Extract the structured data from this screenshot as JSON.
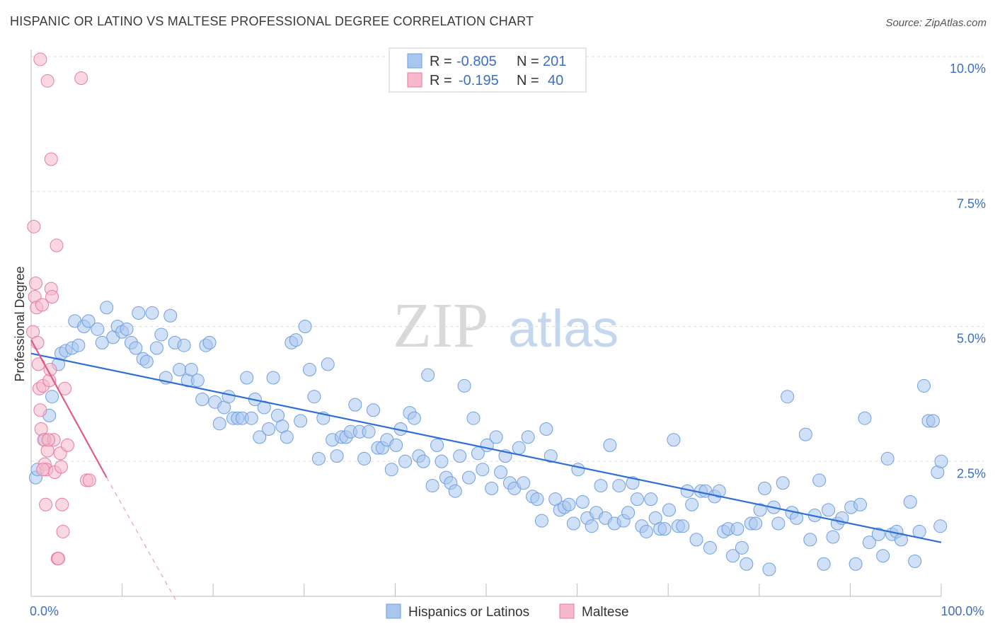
{
  "title": "HISPANIC OR LATINO VS MALTESE PROFESSIONAL DEGREE CORRELATION CHART",
  "source": "Source: ZipAtlas.com",
  "watermark": {
    "zip": "ZIP",
    "atlas": "atlas"
  },
  "legend": {
    "rows": [
      {
        "r_label": "R =",
        "r_value": "-0.805",
        "n_label": "N =",
        "n_value": "201",
        "color": "#a9c6ee"
      },
      {
        "r_label": "R =",
        "r_value": "-0.195",
        "n_label": "N =",
        "n_value": "40",
        "color": "#f6b8cb"
      }
    ]
  },
  "bottom_legend": [
    {
      "label": "Hispanics or Latinos",
      "color": "#a9c6ee"
    },
    {
      "label": "Maltese",
      "color": "#f6b8cb"
    }
  ],
  "chart_data": {
    "type": "scatter",
    "xlabel": "",
    "ylabel": "Professional Degree",
    "xlim": [
      0,
      100
    ],
    "ylim": [
      0,
      10
    ],
    "x_tick_labels": [
      {
        "value": 0,
        "label": "0.0%"
      },
      {
        "value": 100,
        "label": "100.0%"
      }
    ],
    "y_tick_labels": [
      {
        "value": 2.5,
        "label": "2.5%"
      },
      {
        "value": 5.0,
        "label": "5.0%"
      },
      {
        "value": 7.5,
        "label": "7.5%"
      },
      {
        "value": 10.0,
        "label": "10.0%"
      }
    ],
    "grid": true,
    "series": [
      {
        "name": "Hispanics or Latinos",
        "color": "#6f9fe0",
        "fill": "#a9c6ee",
        "trend": {
          "x": [
            0,
            100
          ],
          "y": [
            4.5,
            1.0
          ]
        },
        "points": [
          [
            0.5,
            2.2
          ],
          [
            0.7,
            2.35
          ],
          [
            1.5,
            2.9
          ],
          [
            2.0,
            3.35
          ],
          [
            2.3,
            3.7
          ],
          [
            3.0,
            4.3
          ],
          [
            3.3,
            4.5
          ],
          [
            3.8,
            4.55
          ],
          [
            4.5,
            4.6
          ],
          [
            5.2,
            4.65
          ],
          [
            4.8,
            5.1
          ],
          [
            5.8,
            5.0
          ],
          [
            6.3,
            5.1
          ],
          [
            7.3,
            4.95
          ],
          [
            7.8,
            4.7
          ],
          [
            8.3,
            5.35
          ],
          [
            9.0,
            4.8
          ],
          [
            9.5,
            5.0
          ],
          [
            10.0,
            4.9
          ],
          [
            10.5,
            4.95
          ],
          [
            11.0,
            4.7
          ],
          [
            11.5,
            4.6
          ],
          [
            11.8,
            5.25
          ],
          [
            12.3,
            4.4
          ],
          [
            12.7,
            4.35
          ],
          [
            13.3,
            5.25
          ],
          [
            13.8,
            4.6
          ],
          [
            14.3,
            4.85
          ],
          [
            14.8,
            4.05
          ],
          [
            15.3,
            5.2
          ],
          [
            15.8,
            4.7
          ],
          [
            16.3,
            4.2
          ],
          [
            16.8,
            4.65
          ],
          [
            17.2,
            4.0
          ],
          [
            17.6,
            4.2
          ],
          [
            18.3,
            4.0
          ],
          [
            18.8,
            3.65
          ],
          [
            19.2,
            4.65
          ],
          [
            19.6,
            4.7
          ],
          [
            20.2,
            3.6
          ],
          [
            20.7,
            3.2
          ],
          [
            21.2,
            3.5
          ],
          [
            21.7,
            3.7
          ],
          [
            22.2,
            3.3
          ],
          [
            22.7,
            3.3
          ],
          [
            23.2,
            3.3
          ],
          [
            23.7,
            4.05
          ],
          [
            24.2,
            3.3
          ],
          [
            24.6,
            3.65
          ],
          [
            25.1,
            2.95
          ],
          [
            25.6,
            3.5
          ],
          [
            26.1,
            3.1
          ],
          [
            26.6,
            4.05
          ],
          [
            27.1,
            3.35
          ],
          [
            27.6,
            3.15
          ],
          [
            28.1,
            2.95
          ],
          [
            28.6,
            4.7
          ],
          [
            29.1,
            4.75
          ],
          [
            29.6,
            3.25
          ],
          [
            30.1,
            5.0
          ],
          [
            30.6,
            4.2
          ],
          [
            31.1,
            3.7
          ],
          [
            31.6,
            2.55
          ],
          [
            32.1,
            3.3
          ],
          [
            32.6,
            4.3
          ],
          [
            33.1,
            2.9
          ],
          [
            33.6,
            2.6
          ],
          [
            34.1,
            2.95
          ],
          [
            34.6,
            2.95
          ],
          [
            35.1,
            3.05
          ],
          [
            35.6,
            3.55
          ],
          [
            36.1,
            3.05
          ],
          [
            36.6,
            2.55
          ],
          [
            37.1,
            3.05
          ],
          [
            37.6,
            3.45
          ],
          [
            38.1,
            2.75
          ],
          [
            38.6,
            2.75
          ],
          [
            39.1,
            2.9
          ],
          [
            39.6,
            2.35
          ],
          [
            40.1,
            2.8
          ],
          [
            40.6,
            3.1
          ],
          [
            41.1,
            2.5
          ],
          [
            41.6,
            3.4
          ],
          [
            42.1,
            3.3
          ],
          [
            42.6,
            2.6
          ],
          [
            43.1,
            2.5
          ],
          [
            43.6,
            4.1
          ],
          [
            44.1,
            2.05
          ],
          [
            44.6,
            2.8
          ],
          [
            45.1,
            2.5
          ],
          [
            45.6,
            2.2
          ],
          [
            46.1,
            2.1
          ],
          [
            46.6,
            1.95
          ],
          [
            47.1,
            2.6
          ],
          [
            47.6,
            3.9
          ],
          [
            48.1,
            2.2
          ],
          [
            48.6,
            3.3
          ],
          [
            49.1,
            2.65
          ],
          [
            49.6,
            2.35
          ],
          [
            50.1,
            2.8
          ],
          [
            50.6,
            2.0
          ],
          [
            51.1,
            2.95
          ],
          [
            51.6,
            2.3
          ],
          [
            52.1,
            2.6
          ],
          [
            52.6,
            2.1
          ],
          [
            53.1,
            2.0
          ],
          [
            53.6,
            2.75
          ],
          [
            54.1,
            2.1
          ],
          [
            54.6,
            2.95
          ],
          [
            55.1,
            1.85
          ],
          [
            55.6,
            1.8
          ],
          [
            56.1,
            1.4
          ],
          [
            56.6,
            3.1
          ],
          [
            57.1,
            2.6
          ],
          [
            57.6,
            1.8
          ],
          [
            58.1,
            1.6
          ],
          [
            58.6,
            1.65
          ],
          [
            59.1,
            1.7
          ],
          [
            59.6,
            1.35
          ],
          [
            60.1,
            2.35
          ],
          [
            60.6,
            1.75
          ],
          [
            61.1,
            1.45
          ],
          [
            61.6,
            1.3
          ],
          [
            62.1,
            1.55
          ],
          [
            62.6,
            2.05
          ],
          [
            63.1,
            1.45
          ],
          [
            63.6,
            2.8
          ],
          [
            64.1,
            1.35
          ],
          [
            64.6,
            2.05
          ],
          [
            65.1,
            1.4
          ],
          [
            65.6,
            1.55
          ],
          [
            66.1,
            2.1
          ],
          [
            66.6,
            1.8
          ],
          [
            67.1,
            1.3
          ],
          [
            67.6,
            1.2
          ],
          [
            68.1,
            1.8
          ],
          [
            68.6,
            1.45
          ],
          [
            69.1,
            1.25
          ],
          [
            69.6,
            1.25
          ],
          [
            70.1,
            1.6
          ],
          [
            70.6,
            2.9
          ],
          [
            71.1,
            1.3
          ],
          [
            71.6,
            1.3
          ],
          [
            72.1,
            1.95
          ],
          [
            72.6,
            1.7
          ],
          [
            73.1,
            1.05
          ],
          [
            73.6,
            1.95
          ],
          [
            74.1,
            1.95
          ],
          [
            74.6,
            0.9
          ],
          [
            75.1,
            1.85
          ],
          [
            75.6,
            1.95
          ],
          [
            76.1,
            1.2
          ],
          [
            76.6,
            1.25
          ],
          [
            77.1,
            0.75
          ],
          [
            77.6,
            1.25
          ],
          [
            78.1,
            0.9
          ],
          [
            78.6,
            0.6
          ],
          [
            79.1,
            1.35
          ],
          [
            79.6,
            1.35
          ],
          [
            80.1,
            1.6
          ],
          [
            80.6,
            2.0
          ],
          [
            81.1,
            0.5
          ],
          [
            81.6,
            1.65
          ],
          [
            82.1,
            1.35
          ],
          [
            82.6,
            2.1
          ],
          [
            83.1,
            3.7
          ],
          [
            83.6,
            1.55
          ],
          [
            84.1,
            1.45
          ],
          [
            85.1,
            3.0
          ],
          [
            85.6,
            1.05
          ],
          [
            86.1,
            1.5
          ],
          [
            86.6,
            2.15
          ],
          [
            87.1,
            0.6
          ],
          [
            87.6,
            1.6
          ],
          [
            88.1,
            1.1
          ],
          [
            88.6,
            1.35
          ],
          [
            89.1,
            1.45
          ],
          [
            90.1,
            1.65
          ],
          [
            90.6,
            0.6
          ],
          [
            91.1,
            1.7
          ],
          [
            91.6,
            3.3
          ],
          [
            92.1,
            1.0
          ],
          [
            93.1,
            1.15
          ],
          [
            93.6,
            0.75
          ],
          [
            94.1,
            2.55
          ],
          [
            94.6,
            1.15
          ],
          [
            95.1,
            1.2
          ],
          [
            95.6,
            1.05
          ],
          [
            96.6,
            1.75
          ],
          [
            97.1,
            0.65
          ],
          [
            97.6,
            1.2
          ],
          [
            98.1,
            3.9
          ],
          [
            98.6,
            3.25
          ],
          [
            99.1,
            3.25
          ],
          [
            99.6,
            2.3
          ],
          [
            100.0,
            2.5
          ],
          [
            99.9,
            1.3
          ]
        ]
      },
      {
        "name": "Maltese",
        "color": "#e87aa0",
        "fill": "#f6b8cb",
        "trend": {
          "x": [
            0,
            8.3
          ],
          "y": [
            4.75,
            2.2
          ]
        },
        "trend_dashed": {
          "x": [
            8.3,
            16
          ],
          "y": [
            2.2,
            -0.1
          ]
        },
        "points": [
          [
            0.2,
            4.9
          ],
          [
            0.3,
            6.85
          ],
          [
            0.4,
            5.55
          ],
          [
            0.5,
            5.8
          ],
          [
            0.6,
            5.35
          ],
          [
            0.7,
            4.7
          ],
          [
            0.8,
            4.3
          ],
          [
            0.9,
            3.85
          ],
          [
            1.0,
            3.45
          ],
          [
            1.1,
            3.1
          ],
          [
            1.2,
            5.4
          ],
          [
            1.3,
            3.9
          ],
          [
            1.4,
            2.9
          ],
          [
            1.5,
            2.45
          ],
          [
            1.6,
            1.7
          ],
          [
            1.7,
            2.35
          ],
          [
            1.8,
            2.7
          ],
          [
            2.0,
            4.0
          ],
          [
            2.1,
            4.2
          ],
          [
            2.2,
            5.7
          ],
          [
            2.3,
            5.55
          ],
          [
            2.5,
            2.9
          ],
          [
            2.6,
            2.3
          ],
          [
            2.8,
            6.5
          ],
          [
            2.9,
            0.7
          ],
          [
            3.0,
            0.7
          ],
          [
            3.2,
            2.65
          ],
          [
            3.3,
            2.4
          ],
          [
            3.4,
            1.7
          ],
          [
            3.5,
            1.2
          ],
          [
            3.7,
            3.85
          ],
          [
            4.0,
            2.8
          ],
          [
            1.8,
            9.55
          ],
          [
            2.2,
            8.1
          ],
          [
            5.5,
            9.6
          ],
          [
            6.1,
            2.15
          ],
          [
            6.4,
            2.15
          ],
          [
            1.0,
            9.95
          ],
          [
            1.3,
            2.35
          ],
          [
            1.9,
            2.9
          ]
        ]
      }
    ]
  }
}
